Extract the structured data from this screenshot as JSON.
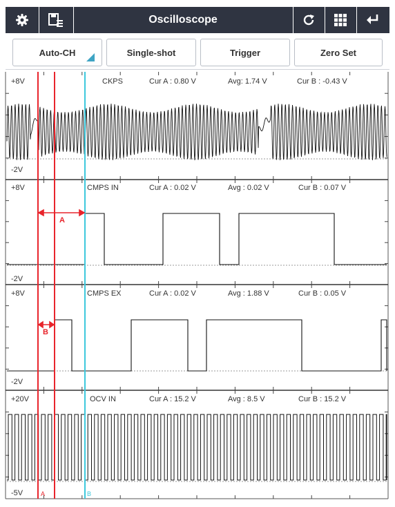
{
  "toolbar": {
    "title": "Oscilloscope",
    "icons": [
      "gear-icon",
      "save-list-icon",
      "refresh-icon",
      "grid-icon",
      "back-arrow-icon"
    ]
  },
  "tabs": [
    {
      "label": "Auto-CH"
    },
    {
      "label": "Single-shot"
    },
    {
      "label": "Trigger"
    },
    {
      "label": "Zero Set"
    }
  ],
  "channels": [
    {
      "max": "+8V",
      "min": "-2V",
      "name": "CKPS",
      "cur_a": "Cur A : 0.80 V",
      "avg": "Avg: 1.74 V",
      "cur_b": "Cur B : -0.43 V"
    },
    {
      "max": "+8V",
      "min": "-2V",
      "name": "CMPS IN",
      "cur_a": "Cur A : 0.02 V",
      "avg": "Avg : 0.02 V",
      "cur_b": "Cur B : 0.07 V"
    },
    {
      "max": "+8V",
      "min": "-2V",
      "name": "CMPS EX",
      "cur_a": "Cur A : 0.02 V",
      "avg": "Avg : 1.88 V",
      "cur_b": "Cur B : 0.05 V"
    },
    {
      "max": "+20V",
      "min": "-5V",
      "name": "OCV IN",
      "cur_a": "Cur A : 15.2 V",
      "avg": "Avg : 8.5 V",
      "cur_b": "Cur B : 15.2 V"
    }
  ],
  "annotations": {
    "a": "A",
    "b": "B"
  },
  "cursors": {
    "a": "A",
    "b": "B"
  },
  "colors": {
    "toolbar": "#2f3441",
    "cursor_a": "#e8242b",
    "cursor_b": "#3cc8dc",
    "trace": "#111111",
    "tab_corner": "#3fa4c4"
  }
}
